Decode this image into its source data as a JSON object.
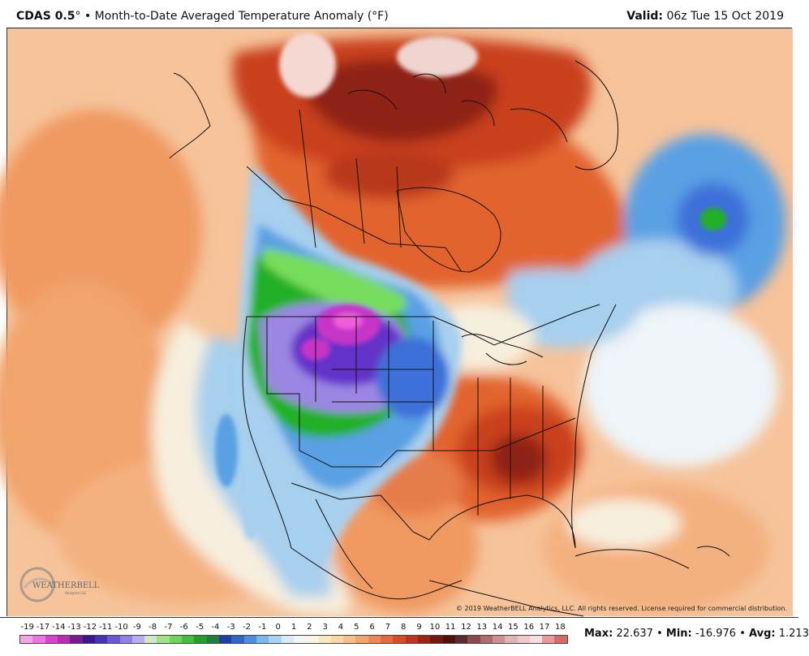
{
  "header": {
    "product": "CDAS 0.5",
    "degree": "°",
    "bullet": "•",
    "description": "Month-to-Date Averaged Temperature Anomaly (°F)",
    "valid_label": "Valid:",
    "valid_time": "06z Tue 15 Oct 2019"
  },
  "map": {
    "colors": {
      "ocean_base": "#f6c39a",
      "warm_orange": "#f09a62",
      "warm_dark": "#e2632f",
      "hot_red": "#c9401d",
      "very_hot": "#8e2314",
      "extreme": "#5d1a14",
      "pale_pink": "#f6d8d2",
      "neutral_pale": "#f7efde",
      "neutral_white": "#eef4f8",
      "light_blue": "#a7cfee",
      "mid_blue": "#5aa0e4",
      "blue": "#3c6fd9",
      "green_light": "#77dd5c",
      "green": "#23b027",
      "purple_light": "#9b86e3",
      "purple": "#6432c9",
      "magenta": "#c634c8",
      "pink": "#ef5fd8"
    }
  },
  "copyright": "© 2019 WeatherBELL Analytics, LLC. All rights reserved. License required for commercial distribution.",
  "logo": {
    "text_main": "WEATHERBELL",
    "text_sub": "Analytics LLC"
  },
  "legend": {
    "labels": [
      "-19",
      "-17",
      "-14",
      "-13",
      "-12",
      "-11",
      "-10",
      "-9",
      "-8",
      "-7",
      "-6",
      "-5",
      "-4",
      "-3",
      "-2",
      "-1",
      "0",
      "1",
      "2",
      "3",
      "4",
      "5",
      "6",
      "7",
      "8",
      "9",
      "10",
      "11",
      "12",
      "13",
      "14",
      "15",
      "16",
      "17",
      "18"
    ],
    "colors": [
      "#f7a3ec",
      "#ef74df",
      "#dc40cd",
      "#b82db1",
      "#7a1a8f",
      "#3b1690",
      "#4a2fbb",
      "#6b57d6",
      "#8f7fe6",
      "#b6aef0",
      "#cfe9c5",
      "#9fe486",
      "#6fd45a",
      "#40c03b",
      "#23a02a",
      "#237e3a",
      "#1f3fa8",
      "#2f63cf",
      "#4d8ee0",
      "#78b7ec",
      "#a6d4f4",
      "#d6ecf8",
      "#f2f6f4",
      "#fbf3e2",
      "#f9e8be",
      "#f8d8a2",
      "#f6c08a",
      "#f2a46d",
      "#ed8854",
      "#e66a3e",
      "#d74d2c",
      "#c0341f",
      "#9c2415",
      "#731811",
      "#4d120e",
      "#5a2a2a",
      "#8b4a4a",
      "#b06c6c",
      "#cf9090",
      "#e6b3b3",
      "#f1c8c8",
      "#f8dede",
      "#e89a9a",
      "#d46a6a"
    ],
    "stats": {
      "max_label": "Max:",
      "max_value": "22.637",
      "min_label": "Min:",
      "min_value": "-16.976",
      "avg_label": "Avg:",
      "avg_value": "1.213",
      "sep": "•"
    }
  }
}
